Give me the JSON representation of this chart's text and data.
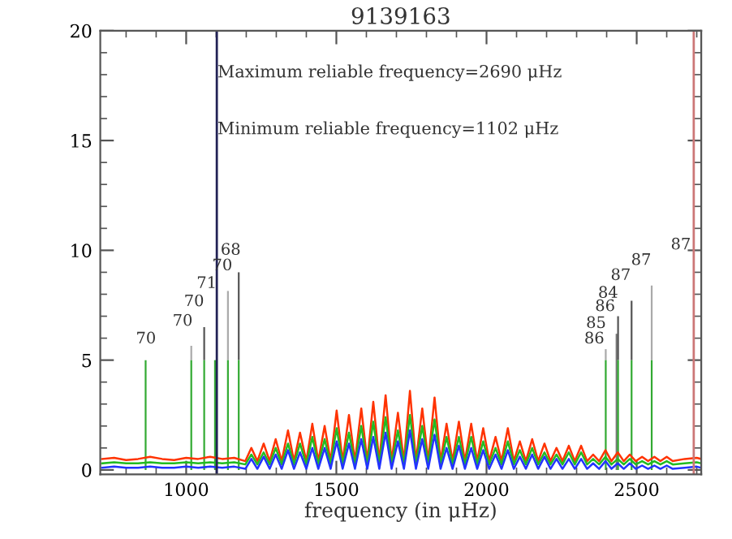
{
  "chart_data": {
    "type": "line",
    "title": "9139163",
    "xlabel": "frequency (in μHz)",
    "x": [
      720,
      760,
      800,
      840,
      880,
      920,
      960,
      1000,
      1040,
      1080,
      1120,
      1160,
      1197,
      1217,
      1237,
      1258,
      1278,
      1298,
      1318,
      1339,
      1359,
      1379,
      1400,
      1420,
      1440,
      1461,
      1481,
      1501,
      1521,
      1542,
      1562,
      1583,
      1603,
      1623,
      1643,
      1664,
      1684,
      1705,
      1725,
      1745,
      1765,
      1786,
      1806,
      1827,
      1847,
      1867,
      1887,
      1908,
      1928,
      1949,
      1969,
      1989,
      2009,
      2030,
      2050,
      2071,
      2091,
      2111,
      2131,
      2152,
      2172,
      2193,
      2213,
      2233,
      2253,
      2274,
      2294,
      2315,
      2335,
      2355,
      2375,
      2396,
      2416,
      2437,
      2457,
      2477,
      2497,
      2518,
      2538,
      2559,
      2579,
      2600,
      2620,
      2660,
      2700,
      2715
    ],
    "series": [
      {
        "color": "#ff3300",
        "values": [
          0.5,
          0.55,
          0.45,
          0.5,
          0.6,
          0.5,
          0.45,
          0.55,
          0.5,
          0.6,
          0.5,
          0.55,
          0.4,
          1.0,
          0.4,
          1.2,
          0.4,
          1.4,
          0.4,
          1.8,
          0.4,
          1.7,
          0.4,
          2.1,
          0.4,
          2.0,
          0.4,
          2.7,
          0.4,
          2.5,
          0.4,
          2.8,
          0.4,
          3.1,
          0.4,
          3.4,
          0.4,
          2.6,
          0.4,
          3.6,
          0.4,
          2.8,
          0.4,
          3.3,
          0.4,
          2.1,
          0.4,
          2.2,
          0.4,
          2.1,
          0.4,
          1.9,
          0.4,
          1.5,
          0.4,
          1.9,
          0.4,
          1.3,
          0.4,
          1.4,
          0.4,
          1.2,
          0.4,
          1.0,
          0.4,
          1.1,
          0.4,
          1.1,
          0.4,
          0.7,
          0.4,
          0.9,
          0.4,
          0.8,
          0.4,
          0.7,
          0.4,
          0.6,
          0.4,
          0.6,
          0.4,
          0.6,
          0.4,
          0.5,
          0.55,
          0.5
        ]
      },
      {
        "color": "#22bb22",
        "values": [
          0.3,
          0.35,
          0.3,
          0.3,
          0.35,
          0.3,
          0.3,
          0.35,
          0.3,
          0.35,
          0.3,
          0.35,
          0.25,
          0.7,
          0.25,
          0.8,
          0.25,
          1.0,
          0.25,
          1.2,
          0.25,
          1.2,
          0.25,
          1.5,
          0.25,
          1.4,
          0.25,
          1.9,
          0.25,
          1.7,
          0.25,
          2.0,
          0.25,
          2.2,
          0.25,
          2.4,
          0.25,
          1.8,
          0.25,
          2.5,
          0.25,
          2.0,
          0.25,
          2.3,
          0.25,
          1.5,
          0.25,
          1.5,
          0.25,
          1.5,
          0.25,
          1.3,
          0.25,
          1.0,
          0.25,
          1.3,
          0.25,
          0.9,
          0.25,
          1.0,
          0.25,
          0.8,
          0.25,
          0.7,
          0.25,
          0.8,
          0.25,
          0.8,
          0.25,
          0.5,
          0.25,
          0.6,
          0.25,
          0.5,
          0.25,
          0.5,
          0.25,
          0.4,
          0.25,
          0.4,
          0.25,
          0.4,
          0.25,
          0.3,
          0.35,
          0.3
        ]
      },
      {
        "color": "#2233ff",
        "values": [
          0.1,
          0.15,
          0.1,
          0.1,
          0.15,
          0.1,
          0.1,
          0.15,
          0.1,
          0.15,
          0.1,
          0.15,
          0.05,
          0.5,
          0.05,
          0.6,
          0.05,
          0.7,
          0.05,
          0.9,
          0.05,
          0.8,
          0.05,
          1.0,
          0.05,
          1.0,
          0.05,
          1.3,
          0.05,
          1.2,
          0.05,
          1.4,
          0.05,
          1.5,
          0.05,
          1.7,
          0.05,
          1.3,
          0.05,
          1.8,
          0.05,
          1.4,
          0.05,
          1.6,
          0.05,
          1.0,
          0.05,
          1.1,
          0.05,
          1.0,
          0.05,
          0.9,
          0.05,
          0.7,
          0.05,
          0.9,
          0.05,
          0.6,
          0.05,
          0.7,
          0.05,
          0.6,
          0.05,
          0.5,
          0.05,
          0.5,
          0.05,
          0.5,
          0.05,
          0.3,
          0.05,
          0.4,
          0.05,
          0.3,
          0.05,
          0.3,
          0.05,
          0.2,
          0.05,
          0.2,
          0.05,
          0.2,
          0.05,
          0.1,
          0.15,
          0.1
        ]
      },
      {
        "type": "bar",
        "x": [
          1017,
          1060,
          1139,
          1175,
          2397,
          2433,
          2438,
          2483,
          2550
        ],
        "base": [
          5,
          5,
          5,
          5,
          5,
          0,
          5,
          5,
          5
        ],
        "values": [
          0.65,
          1.5,
          3.15,
          4.0,
          0.5,
          6.2,
          2.0,
          2.7,
          3.4
        ],
        "colors": [
          "#aaaaaa",
          "#555555",
          "#aaaaaa",
          "#555555",
          "#aaaaaa",
          "#777777",
          "#555555",
          "#555555",
          "#aaaaaa"
        ]
      },
      {
        "type": "bar",
        "x": [
          865,
          1017,
          1060,
          1096,
          1139,
          1175,
          2397,
          2438,
          2483,
          2550
        ],
        "values": [
          5,
          5,
          5,
          5,
          5,
          5,
          5,
          5,
          5,
          5
        ],
        "colors": [
          "#33aa33",
          "#33aa33",
          "#33aa33",
          "#33aa33",
          "#33aa33",
          "#33aa33",
          "#33aa33",
          "#33aa33",
          "#33aa33",
          "#33aa33"
        ]
      }
    ],
    "ref_lines": [
      {
        "axis": "x",
        "value": 1102,
        "color": "#222255"
      },
      {
        "axis": "x",
        "value": 2690,
        "color": "#cc7777"
      }
    ],
    "annotations": [
      "Maximum reliable frequency=2690 μHz",
      "Minimum reliable frequency=1102 μHz",
      "70",
      "70",
      "70",
      "71",
      "70",
      "68",
      "86",
      "85",
      "86",
      "84",
      "87",
      "87",
      "87"
    ],
    "xlim": [
      714,
      2715
    ],
    "ylim": [
      -0.2,
      20
    ],
    "xticks": [
      1000,
      1500,
      2000,
      2500
    ],
    "yticks": [
      0,
      5,
      10,
      15,
      20
    ]
  }
}
